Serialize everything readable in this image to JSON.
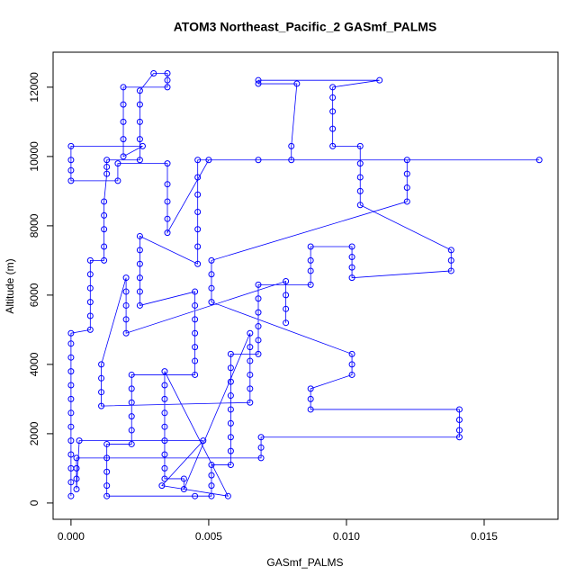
{
  "chart_data": {
    "type": "line",
    "title": "ATOM3 Northeast_Pacific_2 GASmf_PALMS",
    "x_label": "GASmf_PALMS",
    "y_label": "Altitude (m)",
    "xlim": [
      -0.00065,
      0.01768
    ],
    "ylim": [
      -470,
      13010
    ],
    "xticks": [
      {
        "value": 0,
        "label": "0.000"
      },
      {
        "value": 0.005,
        "label": "0.005"
      },
      {
        "value": 0.01,
        "label": "0.010"
      },
      {
        "value": 0.015,
        "label": "0.015"
      }
    ],
    "yticks": [
      0,
      2000,
      4000,
      6000,
      8000,
      10000,
      12000
    ],
    "markers": true,
    "x": [
      0,
      0,
      0,
      0,
      0,
      0,
      0,
      0,
      0,
      0,
      0,
      0,
      0,
      0.0007,
      0.0007,
      0.0007,
      0.0007,
      0.0007,
      0.0007,
      0.0012,
      0.0012,
      0.0012,
      0.0012,
      0.0012,
      0.0013,
      0.0013,
      0.0013,
      0.0025,
      0.0025,
      0.0025,
      0.0025,
      0.0025,
      0.003,
      0.0035,
      0.0035,
      0.0035,
      0.0019,
      0.0019,
      0.0019,
      0.0019,
      0.0019,
      0.0026,
      0,
      0,
      0,
      0,
      0.0017,
      0.0017,
      0.0035,
      0.0035,
      0.0035,
      0.0035,
      0.0035,
      0.005,
      0.017,
      0.0068,
      0.0046,
      0.0046,
      0.0046,
      0.0046,
      0.0046,
      0.0046,
      0.0046,
      0.0025,
      0.0025,
      0.0025,
      0.0025,
      0.0025,
      0.0025,
      0.0045,
      0.0045,
      0.0045,
      0.0045,
      0.0045,
      0.0045,
      0.0045,
      0.0022,
      0.0022,
      0.0022,
      0.0022,
      0.0022,
      0.0022,
      0.0013,
      0.0013,
      0.0013,
      0.0013,
      0.0013,
      0.0045,
      0.0051,
      0.0051,
      0.0051,
      0.0051,
      0.0058,
      0.0058,
      0.0058,
      0.0058,
      0.0058,
      0.0058,
      0.0058,
      0.0058,
      0.0058,
      0.0068,
      0.0068,
      0.0068,
      0.0068,
      0.0068,
      0.0068,
      0.0087,
      0.0087,
      0.0087,
      0.0087,
      0.0102,
      0.0102,
      0.0102,
      0.0102,
      0.0138,
      0.0138,
      0.0138,
      0.0105,
      0.0105,
      0.0105,
      0.0105,
      0.0105,
      0.0095,
      0.0095,
      0.0095,
      0.0095,
      0.0095,
      0.0112,
      0.0068,
      0.0068,
      0.0082,
      0.008,
      0.008,
      0.0122,
      0.0122,
      0.0122,
      0.0122,
      0.0051,
      0.0051,
      0.0051,
      0.0051,
      0.0102,
      0.0102,
      0.0102,
      0.0087,
      0.0087,
      0.0087,
      0.0141,
      0.0141,
      0.0141,
      0.0141,
      0.0069,
      0.0069,
      0.0069,
      0.0002,
      0.0002,
      0.0002,
      0.0002,
      0.0003,
      0.0048,
      0.0033,
      0.0057,
      0.0034,
      0.0034,
      0.0034,
      0.0034,
      0.0034,
      0.0034,
      0.0034,
      0.0034,
      0.0034,
      0.0041,
      0.0041,
      0.0065,
      0.0065,
      0.0065,
      0.0065,
      0.0065,
      0.0065,
      0.0011,
      0.0011,
      0.0011,
      0.0011,
      0.002,
      0.002,
      0.002,
      0.002,
      0.002,
      0.0078,
      0.0078,
      0.0078,
      0.0078
    ],
    "series": [
      {
        "name": "GASmf_PALMS",
        "color": "#0000ff",
        "values": [
          200,
          600,
          1000,
          1400,
          1800,
          2200,
          2600,
          3000,
          3400,
          3800,
          4200,
          4600,
          4900,
          5000,
          5400,
          5800,
          6200,
          6600,
          7000,
          7000,
          7400,
          7900,
          8300,
          8700,
          9500,
          9700,
          9900,
          9900,
          10500,
          11000,
          11500,
          11900,
          12400,
          12400,
          12200,
          12000,
          12000,
          11500,
          11000,
          10500,
          10000,
          10300,
          10300,
          9900,
          9600,
          9300,
          9300,
          9800,
          9800,
          9200,
          8700,
          8200,
          7800,
          9900,
          9900,
          9900,
          9900,
          9400,
          8900,
          8400,
          7900,
          7400,
          6900,
          7700,
          7300,
          6900,
          6500,
          6100,
          5700,
          6100,
          5700,
          5300,
          4900,
          4500,
          4100,
          3700,
          3700,
          3300,
          2900,
          2500,
          2100,
          1700,
          1700,
          1300,
          900,
          500,
          200,
          200,
          200,
          500,
          800,
          1100,
          1100,
          1500,
          1900,
          2300,
          2700,
          3100,
          3500,
          3900,
          4300,
          4300,
          4700,
          5100,
          5500,
          5900,
          6300,
          6300,
          6700,
          7000,
          7400,
          7400,
          7100,
          6800,
          6500,
          6700,
          7000,
          7300,
          8600,
          9000,
          9400,
          9800,
          10300,
          10300,
          10800,
          11300,
          11700,
          12000,
          12200,
          12200,
          12100,
          12100,
          10300,
          9900,
          9900,
          9500,
          9100,
          8700,
          7000,
          6600,
          6200,
          5800,
          4300,
          4000,
          3700,
          3300,
          3000,
          2700,
          2700,
          2400,
          2100,
          1900,
          1900,
          1600,
          1300,
          1300,
          1000,
          700,
          400,
          1800,
          1800,
          500,
          200,
          3800,
          3400,
          3000,
          2600,
          2200,
          1800,
          1400,
          1000,
          700,
          700,
          400,
          4900,
          4500,
          4100,
          3700,
          3300,
          2900,
          2800,
          3200,
          3600,
          4000,
          6500,
          6100,
          5700,
          5300,
          4900,
          6400,
          6000,
          5600,
          5200
        ]
      }
    ]
  }
}
